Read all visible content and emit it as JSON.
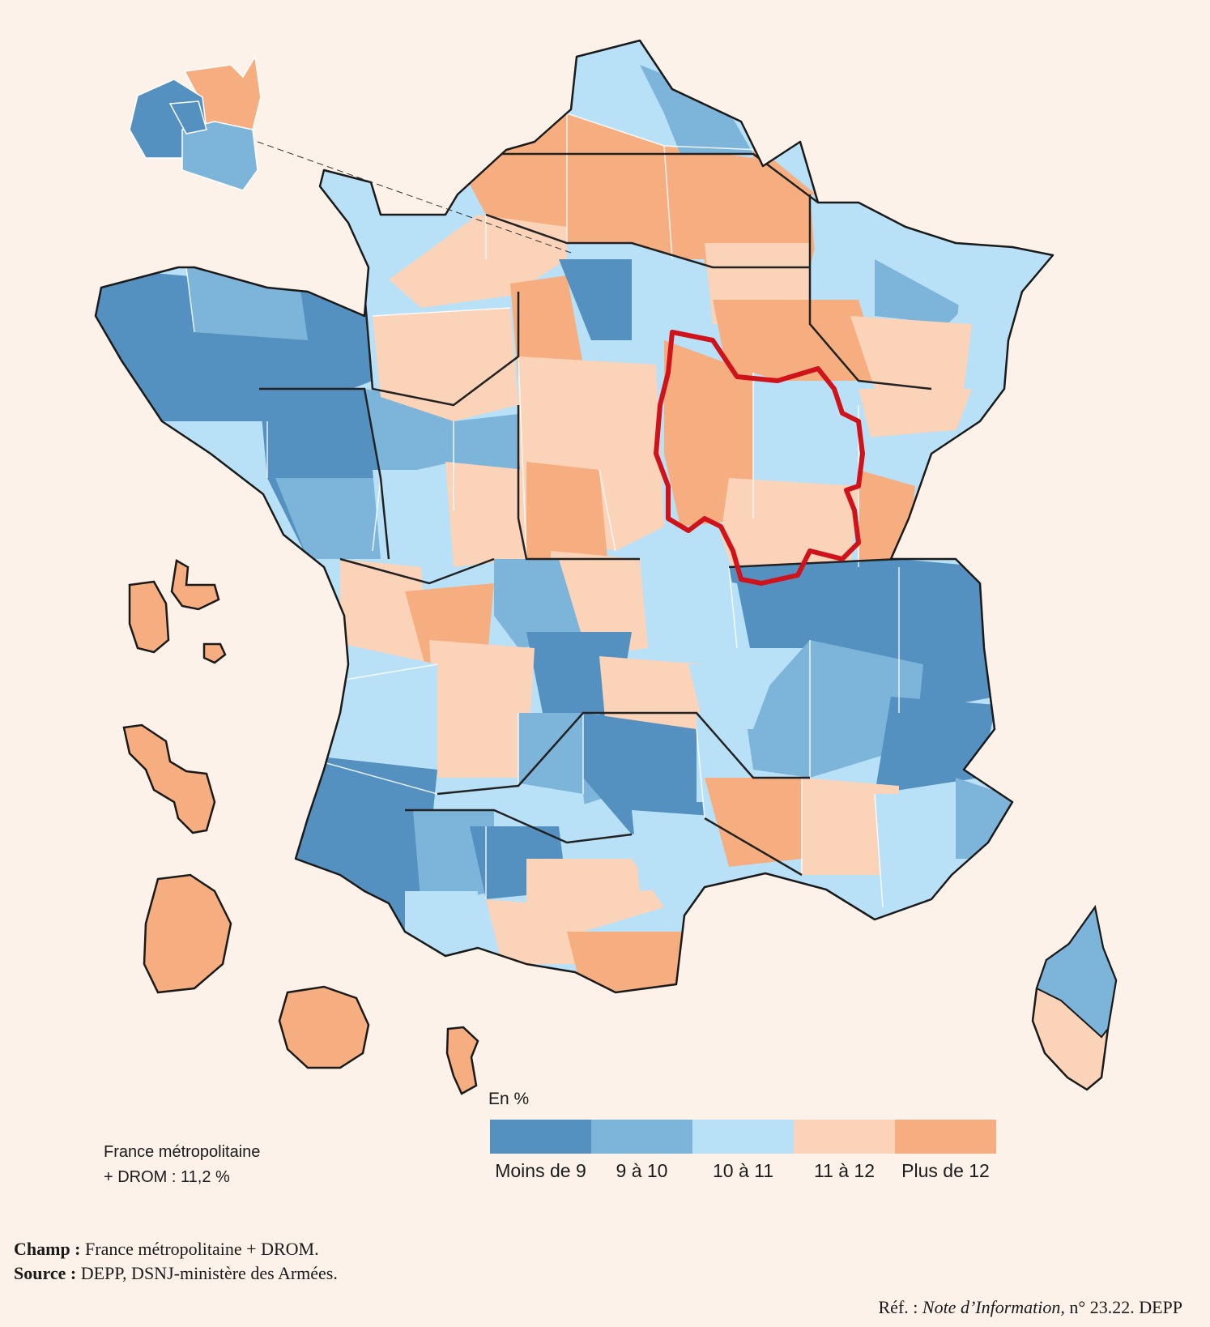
{
  "legend": {
    "unit": "En %",
    "classes": [
      {
        "label": "Moins de 9",
        "color": "#5591c0"
      },
      {
        "label": "9 à 10",
        "color": "#7db4d9"
      },
      {
        "label": "10 à 11",
        "color": "#b8e1f7"
      },
      {
        "label": "11 à 12",
        "color": "#fbd3b9"
      },
      {
        "label": "Plus de 12",
        "color": "#f6ae80"
      }
    ]
  },
  "national": {
    "line1": "France métropolitaine",
    "line2": "+ DROM : 11,2 %"
  },
  "notes": {
    "champ_label": "Champ :",
    "champ_text": " France métropolitaine + DROM.",
    "source_label": "Source :",
    "source_text": " DEPP, DSNJ-ministère des Armées."
  },
  "ref": {
    "prefix": "Réf. : ",
    "publication": "Note d’Information,",
    "suffix": " n° 23.22. DEPP"
  },
  "highlight": {
    "region": "Bourgogne-Franche-Comté",
    "color": "#d0121b"
  }
}
